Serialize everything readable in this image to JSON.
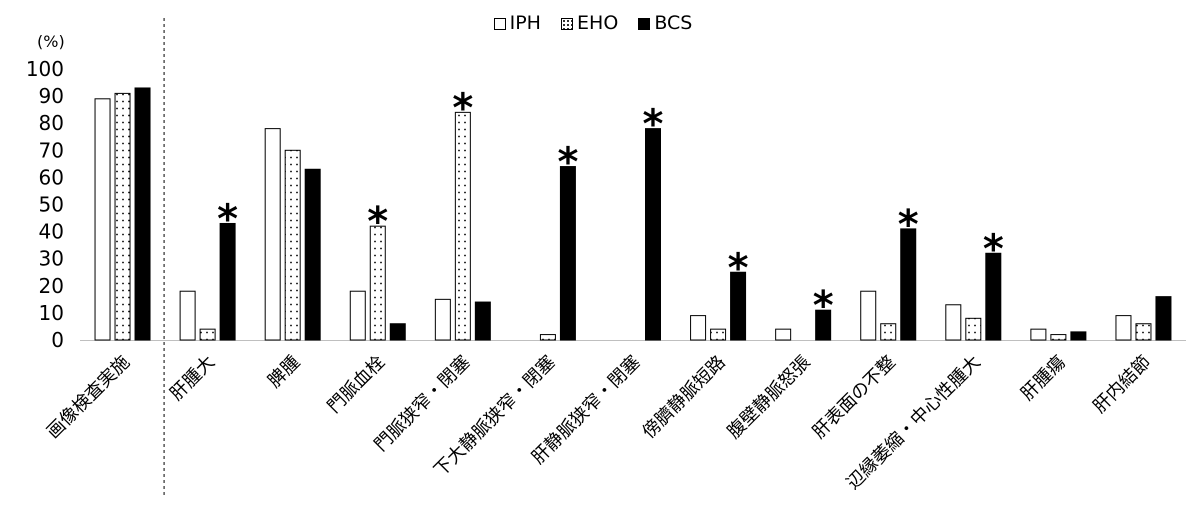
{
  "chart_data": {
    "type": "bar",
    "unit_label": "(%)",
    "ylim": [
      0,
      100
    ],
    "yticks": [
      0,
      10,
      20,
      30,
      40,
      50,
      60,
      70,
      80,
      90,
      100
    ],
    "grid": false,
    "legend_position": "top-center",
    "categories": [
      "画像検査実施",
      "肝腫大",
      "脾腫",
      "門脈血栓",
      "門脈狭窄・閉塞",
      "下大静脈狭窄・閉塞",
      "肝静脈狭窄・閉塞",
      "傍臍静脈短路",
      "腹壁静脈怒張",
      "肝表面の不整",
      "辺縁萎縮・中心性腫大",
      "肝腫瘍",
      "肝内結節"
    ],
    "series": [
      {
        "name": "IPH",
        "pattern": "hollow",
        "values": [
          89,
          18,
          78,
          18,
          15,
          0,
          0,
          9,
          4,
          18,
          13,
          4,
          9
        ]
      },
      {
        "name": "EHO",
        "pattern": "dotted",
        "values": [
          91,
          4,
          70,
          42,
          84,
          2,
          0,
          4,
          0,
          6,
          8,
          2,
          6
        ]
      },
      {
        "name": "BCS",
        "pattern": "solid",
        "values": [
          93,
          43,
          63,
          6,
          14,
          64,
          78,
          25,
          11,
          41,
          32,
          3,
          16
        ]
      }
    ],
    "significance_marker": "*",
    "significant": [
      {
        "category_index": 1,
        "series_index": 2
      },
      {
        "category_index": 3,
        "series_index": 1
      },
      {
        "category_index": 4,
        "series_index": 1
      },
      {
        "category_index": 5,
        "series_index": 2
      },
      {
        "category_index": 6,
        "series_index": 2
      },
      {
        "category_index": 7,
        "series_index": 2
      },
      {
        "category_index": 8,
        "series_index": 2
      },
      {
        "category_index": 9,
        "series_index": 2
      },
      {
        "category_index": 10,
        "series_index": 2
      }
    ]
  },
  "colors": {
    "bar_stroke": "#000000",
    "bcs_fill": "#000000",
    "background": "#ffffff"
  }
}
